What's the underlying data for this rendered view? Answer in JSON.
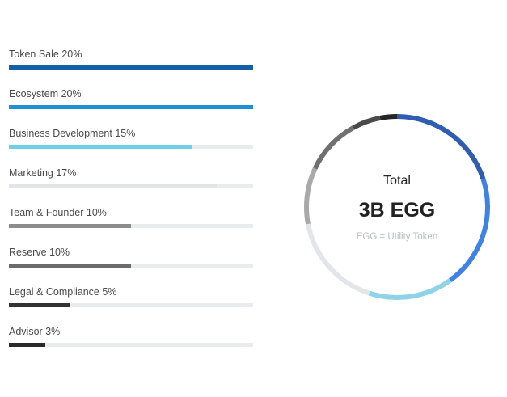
{
  "chart_data": {
    "type": "bar",
    "categories": [
      "Token Sale 20%",
      "Ecosystem 20%",
      "Business Development 15%",
      "Marketing 17%",
      "Team & Founder 10%",
      "Reserve 10%",
      "Legal & Compliance 5%",
      "Advisor 3%"
    ],
    "values": [
      20,
      20,
      15,
      17,
      10,
      10,
      5,
      3
    ],
    "bar_fill_fraction": [
      1.0,
      1.0,
      0.75,
      0.85,
      0.5,
      0.5,
      0.25,
      0.15
    ],
    "colors": [
      "#1460a8",
      "#1f8fd6",
      "#6fcfe6",
      "#e2e4e7",
      "#8c8c8c",
      "#6b6b6b",
      "#333333",
      "#2a2a2a"
    ],
    "grid": false
  },
  "donut": {
    "segments": [
      {
        "value": 20,
        "color": "#2f5eb0"
      },
      {
        "value": 20,
        "color": "#3f82e6"
      },
      {
        "value": 15,
        "color": "#8ed3e8"
      },
      {
        "value": 17,
        "color": "#e3e5e8"
      },
      {
        "value": 10,
        "color": "#a9a9a9"
      },
      {
        "value": 10,
        "color": "#707070"
      },
      {
        "value": 5,
        "color": "#4a4a4a"
      },
      {
        "value": 3,
        "color": "#262626"
      }
    ]
  },
  "center": {
    "title": "Total",
    "value": "3B EGG",
    "subtitle": "EGG = Utility Token"
  }
}
